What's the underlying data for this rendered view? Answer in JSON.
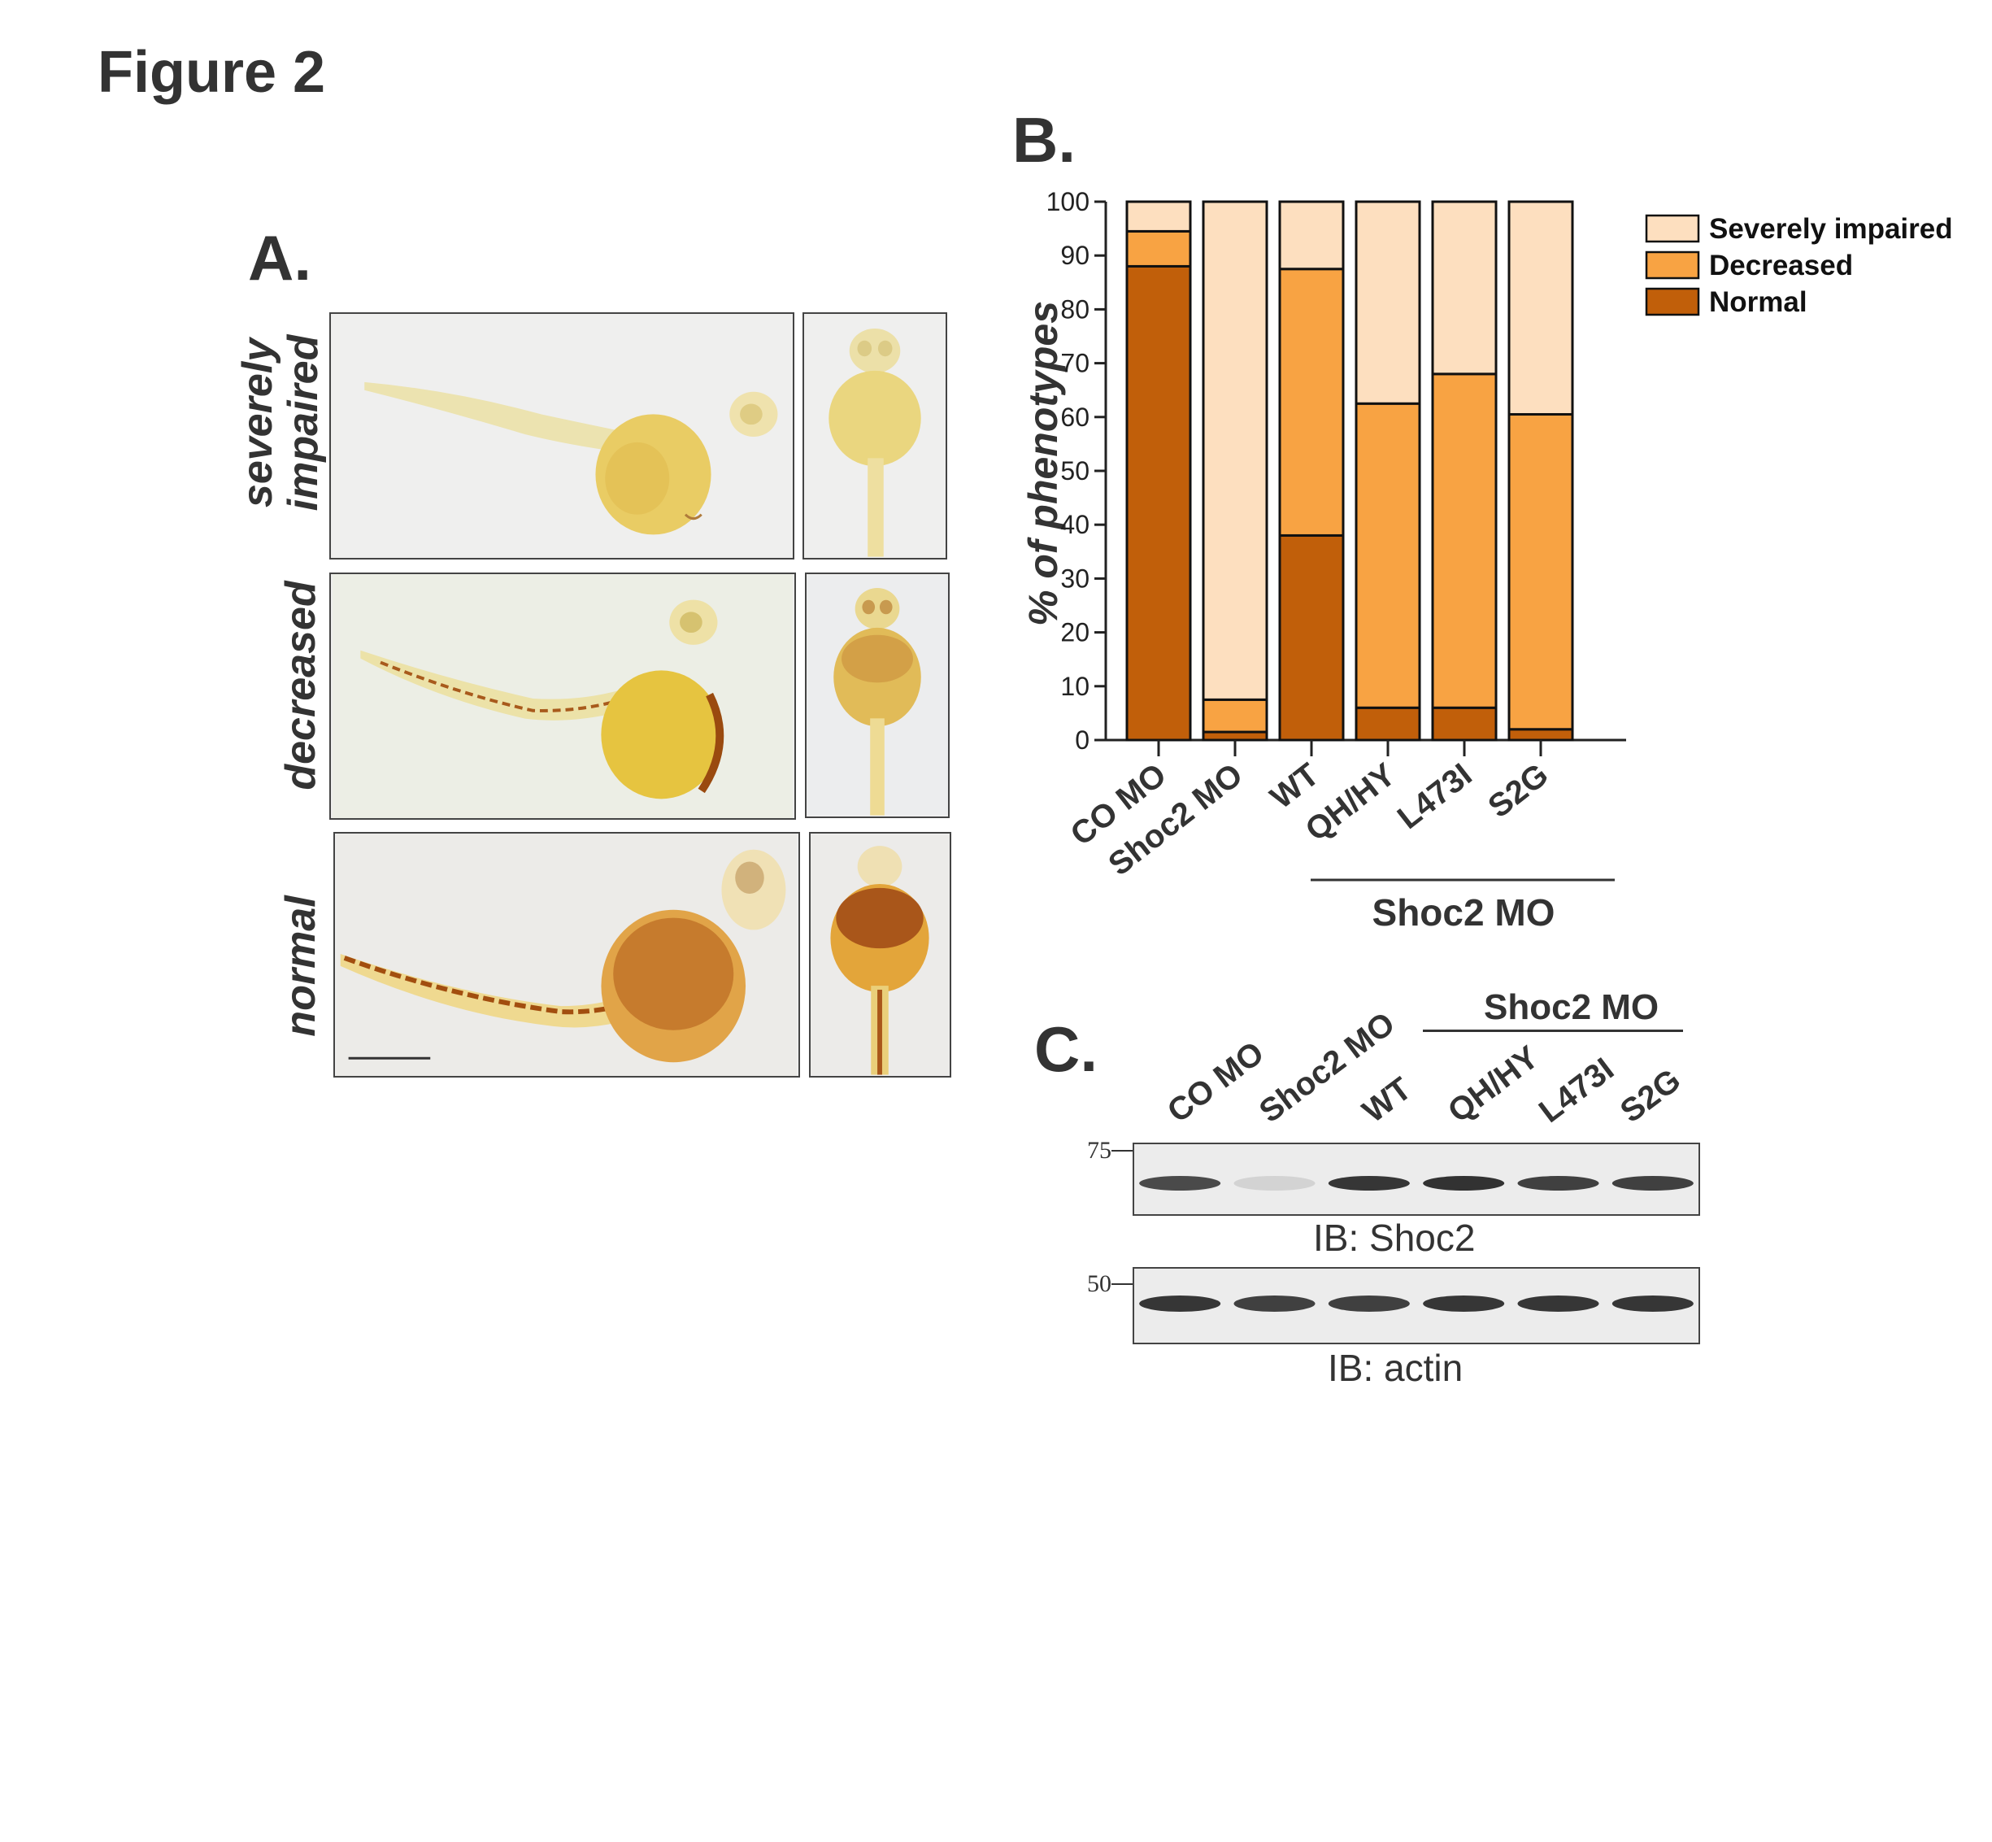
{
  "figure_title": "Figure 2",
  "panel_a": {
    "letter": "A.",
    "rows": [
      {
        "label_line1": "severely",
        "label_line2": "impaired"
      },
      {
        "label_line1": "decreased",
        "label_line2": ""
      },
      {
        "label_line1": "normal",
        "label_line2": ""
      }
    ]
  },
  "panel_b": {
    "letter": "B.",
    "group_label": "Shoc2 MO"
  },
  "chart_data": {
    "type": "bar",
    "stacked": true,
    "categories": [
      "CO MO",
      "Shoc2 MO",
      "WT",
      "QH/HY",
      "L473I",
      "S2G"
    ],
    "series": [
      {
        "name": "Normal",
        "color": "#c15f0a",
        "values": [
          88,
          1.5,
          38,
          6,
          6,
          2
        ]
      },
      {
        "name": "Decreased",
        "color": "#f8a343",
        "values": [
          6.5,
          6,
          49.5,
          56.5,
          62,
          58.5
        ]
      },
      {
        "name": "Severely impaired",
        "color": "#fddfbf",
        "values": [
          5.5,
          92.5,
          12.5,
          37.5,
          32,
          39.5
        ]
      }
    ],
    "ylabel": "% of phenotypes",
    "ylim": [
      0,
      100
    ],
    "yticks": [
      0,
      10,
      20,
      30,
      40,
      50,
      60,
      70,
      80,
      90,
      100
    ],
    "legend_position": "top-right",
    "grid": false
  },
  "panel_c": {
    "letter": "C.",
    "group_label": "Shoc2 MO",
    "lanes": [
      "CO MO",
      "Shoc2 MO",
      "WT",
      "QH/HY",
      "L473I",
      "S2G"
    ],
    "blots": [
      {
        "marker": "75",
        "caption": "IB: Shoc2",
        "band_intensity": [
          0.8,
          0.12,
          0.9,
          0.92,
          0.85,
          0.85
        ]
      },
      {
        "marker": "50",
        "caption": "IB: actin",
        "band_intensity": [
          0.9,
          0.85,
          0.85,
          0.9,
          0.9,
          0.9
        ]
      }
    ]
  }
}
